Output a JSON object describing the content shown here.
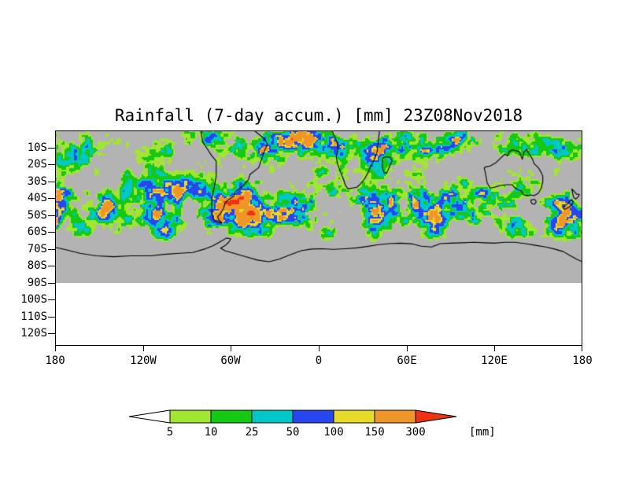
{
  "title": "Rainfall (7-day accum.) [mm] 23Z08Nov2018",
  "y_axis": {
    "ticks": [
      "10S",
      "20S",
      "30S",
      "40S",
      "50S",
      "60S",
      "70S",
      "80S",
      "90S",
      "100S",
      "110S",
      "120S"
    ]
  },
  "x_axis": {
    "ticks": [
      "180",
      "120W",
      "60W",
      "0",
      "60E",
      "120E",
      "180"
    ]
  },
  "colorbar": {
    "tick_labels": [
      "5",
      "10",
      "25",
      "50",
      "100",
      "150",
      "300"
    ],
    "unit_label": "[mm]",
    "segment_colors": [
      "#ffffff",
      "#a0e632",
      "#14c814",
      "#00c8c8",
      "#2846f0",
      "#e6dc28",
      "#f09628",
      "#f03214"
    ]
  },
  "map": {
    "background_color": "#b3b3b3",
    "coastline_color": "#000000"
  },
  "chart_data": {
    "type": "heatmap",
    "title": "Rainfall (7-day accum.) [mm] 23Z08Nov2018",
    "variable": "Rainfall, 7-day accumulation",
    "units": "mm",
    "valid_time": "23Z08Nov2018",
    "projection": "latitude-longitude map, Southern Hemisphere",
    "x": {
      "ticks": [
        "180",
        "120W",
        "60W",
        "0",
        "60E",
        "120E",
        "180"
      ],
      "range_deg_east": [
        -180,
        180
      ]
    },
    "y": {
      "ticks": [
        "10S",
        "20S",
        "30S",
        "40S",
        "50S",
        "60S",
        "70S",
        "80S",
        "90S",
        "100S",
        "110S",
        "120S"
      ],
      "shaded_field_extent": "equator to 90S; axis labeled to 120S with blank area south of 90S"
    },
    "levels_mm": [
      5,
      10,
      25,
      50,
      100,
      150,
      300
    ],
    "color_scale": [
      {
        "range": "< 5",
        "color": "#ffffff"
      },
      {
        "range": "5 - 10",
        "color": "#a0e632"
      },
      {
        "range": "10 - 25",
        "color": "#14c814"
      },
      {
        "range": "25 - 50",
        "color": "#00c8c8"
      },
      {
        "range": "50 - 100",
        "color": "#2846f0"
      },
      {
        "range": "100 - 150",
        "color": "#e6dc28"
      },
      {
        "range": "150 - 300",
        "color": "#f09628"
      },
      {
        "range": "> 300",
        "color": "#f03214"
      }
    ],
    "background_below_lowest_contour": "#b3b3b3",
    "legend": {
      "position": "bottom",
      "unit_label": "[mm]"
    },
    "grid": false,
    "notes": "Speckled shaded rainfall field over a Southern Hemisphere map: heaviest band (green/cyan/blue with orange patches) along the 35S-60S storm track, active tropical band near 10S (strongest over the Indian Ocean and western Pacific), gray background where below the lowest contour, blank white south of 90S, black coastlines for South America, Africa, Madagascar, Australia, New Zealand and Antarctica."
  }
}
